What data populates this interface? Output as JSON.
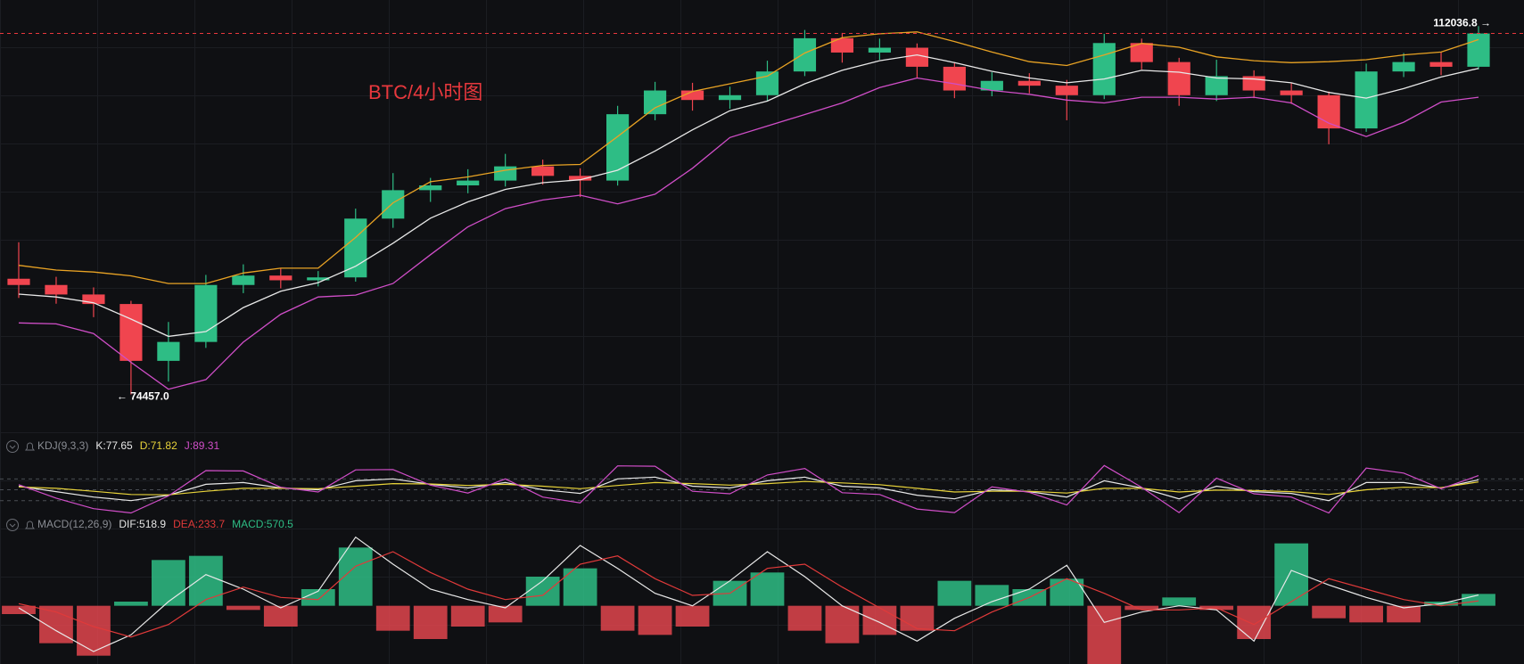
{
  "chart_data": [
    {
      "type": "candlestick",
      "title": "BTC/4小时图",
      "title_color": "#e8383d",
      "up_color": "#2ebd85",
      "down_color": "#f0454f",
      "ylim": [
        72000,
        114500
      ],
      "open": [
        86500,
        85850,
        84860,
        83870,
        77950,
        79920,
        85850,
        86830,
        86340,
        86640,
        92760,
        95720,
        96220,
        96720,
        98200,
        97210,
        96720,
        103630,
        106100,
        105110,
        105610,
        108080,
        111540,
        110050,
        110550,
        108570,
        106100,
        107100,
        106600,
        105610,
        111040,
        109060,
        105610,
        107590,
        106100,
        105610,
        102150,
        108080,
        109060,
        108570
      ],
      "high": [
        90300,
        86700,
        85600,
        84200,
        82000,
        86900,
        88000,
        87600,
        87300,
        93800,
        97500,
        97000,
        97900,
        99500,
        98900,
        98000,
        104500,
        107000,
        106900,
        106500,
        109200,
        112400,
        112100,
        111500,
        111000,
        109000,
        108000,
        107900,
        107200,
        112000,
        111500,
        109500,
        109300,
        108200,
        106900,
        106000,
        108900,
        110000,
        110100,
        112800
      ],
      "low": [
        84500,
        83900,
        82500,
        74457,
        75800,
        79300,
        85000,
        85500,
        85700,
        86200,
        91800,
        94500,
        95400,
        96100,
        96300,
        95000,
        96200,
        103000,
        104000,
        104200,
        105000,
        107600,
        109000,
        109300,
        107400,
        105300,
        105500,
        105800,
        103000,
        105200,
        108300,
        104500,
        105000,
        105300,
        104700,
        100500,
        101800,
        107500,
        107700,
        108300
      ],
      "close": [
        85850,
        84860,
        83870,
        77950,
        79920,
        85850,
        86830,
        86340,
        86640,
        92760,
        95720,
        96220,
        96720,
        98200,
        97210,
        96720,
        103630,
        106100,
        105110,
        105610,
        108080,
        111540,
        110050,
        110550,
        108570,
        106100,
        107100,
        106600,
        105610,
        111040,
        109060,
        105610,
        107590,
        106100,
        105610,
        102150,
        108080,
        109060,
        108570,
        112036.8
      ],
      "overlays": [
        {
          "color": "#e9a324",
          "values": [
            87900,
            87400,
            87200,
            86800,
            86000,
            86000,
            87100,
            87600,
            87600,
            90800,
            94400,
            96600,
            97100,
            97800,
            98300,
            98400,
            101300,
            104300,
            106000,
            106800,
            107600,
            110000,
            111600,
            112000,
            112200,
            111200,
            110100,
            109100,
            108700,
            109800,
            111000,
            110600,
            109600,
            109200,
            109000,
            109100,
            109300,
            109800,
            110100,
            111400
          ]
        },
        {
          "color": "#e8e8e8",
          "values": [
            84900,
            84600,
            84000,
            82300,
            80500,
            81000,
            83500,
            85200,
            86100,
            87800,
            90200,
            92800,
            94500,
            95800,
            96500,
            96800,
            97800,
            99800,
            102000,
            104000,
            105000,
            106800,
            108200,
            109200,
            109800,
            109000,
            108100,
            107400,
            106900,
            107300,
            108200,
            108000,
            107400,
            107300,
            106900,
            105900,
            105300,
            106300,
            107500,
            108400
          ]
        },
        {
          "color": "#d04ec8",
          "values": [
            81900,
            81800,
            80800,
            77800,
            75000,
            76000,
            79900,
            82800,
            84600,
            84800,
            86000,
            89000,
            91900,
            93800,
            94700,
            95200,
            94300,
            95300,
            98000,
            101200,
            102400,
            103600,
            104800,
            106400,
            107400,
            106800,
            106100,
            105700,
            105100,
            104800,
            105400,
            105400,
            105200,
            105400,
            104800,
            102700,
            101300,
            102800,
            104900,
            105400
          ]
        }
      ],
      "annotations": [
        {
          "label": "112036.8 →",
          "value": 112036.8,
          "color": "#e8383d"
        },
        {
          "label": "← 74457.0",
          "value": 74457
        }
      ]
    },
    {
      "type": "kdj",
      "label": "KDJ(9,3,3)",
      "ylim": [
        -25,
        135
      ],
      "levels": [
        80,
        50,
        20
      ],
      "series": [
        {
          "readout": "K:77.65",
          "color": "#e8e8e8",
          "values": [
            60,
            45,
            30,
            20,
            35,
            65,
            70,
            55,
            50,
            75,
            80,
            65,
            55,
            70,
            50,
            40,
            80,
            85,
            60,
            55,
            75,
            85,
            60,
            55,
            35,
            25,
            50,
            45,
            30,
            75,
            55,
            25,
            60,
            45,
            40,
            20,
            70,
            70,
            55,
            77.65
          ]
        },
        {
          "readout": "D:71.82",
          "color": "#e8d33a",
          "values": [
            58,
            54,
            46,
            37,
            36,
            46,
            54,
            54,
            53,
            60,
            67,
            66,
            62,
            65,
            60,
            53,
            62,
            70,
            67,
            63,
            67,
            73,
            69,
            64,
            54,
            44,
            46,
            46,
            41,
            54,
            54,
            44,
            49,
            48,
            45,
            37,
            50,
            57,
            56,
            71.82
          ]
        },
        {
          "readout": "J:89.31",
          "color": "#d04ec8",
          "values": [
            64,
            27,
            -2,
            -14,
            33,
            103,
            102,
            57,
            44,
            105,
            106,
            63,
            41,
            80,
            30,
            14,
            116,
            115,
            46,
            39,
            91,
            109,
            42,
            37,
            -3,
            -13,
            58,
            43,
            8,
            117,
            57,
            -13,
            82,
            39,
            30,
            -14,
            110,
            96,
            53,
            89.31
          ]
        }
      ]
    },
    {
      "type": "macd",
      "label": "MACD(12,26,9)",
      "ylim": [
        -2800,
        3500
      ],
      "series": [
        {
          "readout": "DIF:518.9",
          "color": "#e8e8e8",
          "style": "line",
          "values": [
            -100,
            -1200,
            -2200,
            -1400,
            200,
            1500,
            800,
            -100,
            700,
            3300,
            2000,
            800,
            300,
            -100,
            1200,
            2900,
            1800,
            600,
            0,
            1200,
            2600,
            1400,
            0,
            -800,
            -1700,
            -600,
            200,
            800,
            1950,
            -800,
            -300,
            0,
            -200,
            -1700,
            1700,
            1000,
            400,
            -100,
            100,
            518.9
          ]
        },
        {
          "readout": "DEA:233.7",
          "color": "#e03a3a",
          "style": "line",
          "values": [
            100,
            -300,
            -1000,
            -1500,
            -900,
            300,
            900,
            400,
            300,
            1900,
            2600,
            1600,
            800,
            300,
            500,
            2000,
            2400,
            1300,
            500,
            600,
            1800,
            2000,
            900,
            -100,
            -1100,
            -1200,
            -300,
            400,
            1300,
            600,
            -200,
            -200,
            -100,
            -900,
            200,
            1300,
            800,
            300,
            0,
            233.7
          ]
        },
        {
          "readout": "MACD:570.5",
          "color": "#2ebd85",
          "down_color": "#e0454d",
          "style": "histogram",
          "values": [
            -400,
            -1800,
            -2400,
            200,
            2200,
            2400,
            -200,
            -1000,
            800,
            2800,
            -1200,
            -1600,
            -1000,
            -800,
            1400,
            1800,
            -1200,
            -1400,
            -1000,
            1200,
            1600,
            -1200,
            -1800,
            -1400,
            -1200,
            1200,
            1000,
            800,
            1300,
            -2800,
            -200,
            400,
            -200,
            -1600,
            3000,
            -600,
            -800,
            -800,
            200,
            570.5
          ]
        }
      ]
    }
  ]
}
